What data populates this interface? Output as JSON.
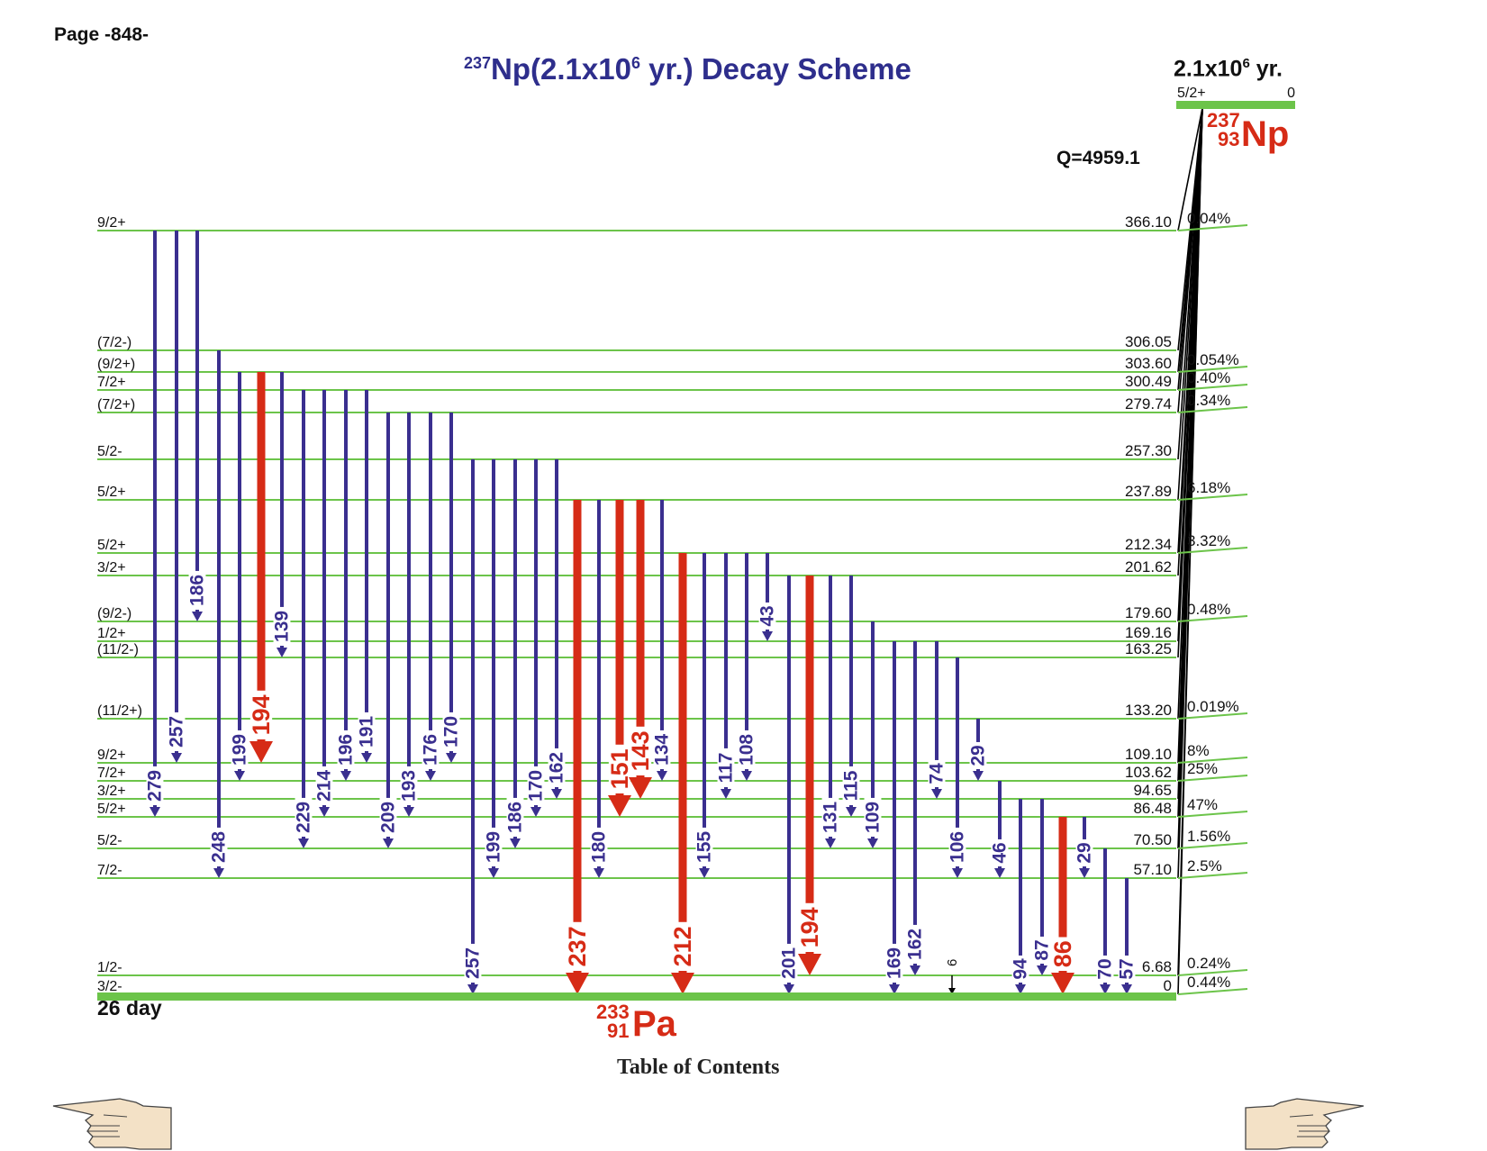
{
  "page_label": "Page -848-",
  "title": {
    "mass": "237",
    "text1": "Np(2.1x10",
    "exp": "6",
    "text2": " yr.) Decay Scheme"
  },
  "parent": {
    "halflife_text": "2.1x10",
    "halflife_exp": "6",
    "halflife_unit": " yr.",
    "spin": "5/2+",
    "energy": "0",
    "mass": "237",
    "z": "93",
    "symbol": "Np",
    "q_value": "Q=4959.1"
  },
  "daughter": {
    "halflife": "26 day",
    "mass": "233",
    "z": "91",
    "symbol": "Pa"
  },
  "footer": {
    "toc": "Table of Contents"
  },
  "colors": {
    "level": "#6cc44a",
    "gamma_weak": "#3a2f8f",
    "gamma_strong": "#d62b16",
    "title": "#2e2e8c",
    "nuclide": "#d62b16"
  },
  "levels": [
    {
      "energy": "366.10",
      "spin": "9/2+",
      "feed": "0.04%",
      "e": 366.1
    },
    {
      "energy": "306.05",
      "spin": "(7/2-)",
      "feed": "",
      "e": 306.05
    },
    {
      "energy": "303.60",
      "spin": "(9/2+)",
      "feed": "0.054%",
      "e": 303.6
    },
    {
      "energy": "300.49",
      "spin": "7/2+",
      "feed": "0.40%",
      "e": 300.49
    },
    {
      "energy": "279.74",
      "spin": "(7/2+)",
      "feed": "0.34%",
      "e": 279.74
    },
    {
      "energy": "257.30",
      "spin": "5/2-",
      "feed": "",
      "e": 257.3
    },
    {
      "energy": "237.89",
      "spin": "5/2+",
      "feed": "6.18%",
      "e": 237.89
    },
    {
      "energy": "212.34",
      "spin": "5/2+",
      "feed": "3.32%",
      "e": 212.34
    },
    {
      "energy": "201.62",
      "spin": "3/2+",
      "feed": "",
      "e": 201.62
    },
    {
      "energy": "179.60",
      "spin": "(9/2-)",
      "feed": "0.48%",
      "e": 179.6
    },
    {
      "energy": "169.16",
      "spin": "1/2+",
      "feed": "",
      "e": 169.16
    },
    {
      "energy": "163.25",
      "spin": "(11/2-)",
      "feed": "",
      "e": 163.25
    },
    {
      "energy": "133.20",
      "spin": "(11/2+)",
      "feed": "0.019%",
      "e": 133.2
    },
    {
      "energy": "109.10",
      "spin": "9/2+",
      "feed": "8%",
      "e": 109.1
    },
    {
      "energy": "103.62",
      "spin": "7/2+",
      "feed": "25%",
      "e": 103.62
    },
    {
      "energy": "94.65",
      "spin": "3/2+",
      "feed": "",
      "e": 94.65
    },
    {
      "energy": "86.48",
      "spin": "5/2+",
      "feed": "47%",
      "e": 86.48
    },
    {
      "energy": "70.50",
      "spin": "5/2-",
      "feed": "1.56%",
      "e": 70.5
    },
    {
      "energy": "57.10",
      "spin": "7/2-",
      "feed": "2.5%",
      "e": 57.1
    },
    {
      "energy": "6.68",
      "spin": "1/2-",
      "feed": "0.24%",
      "e": 6.68
    },
    {
      "energy": "0",
      "spin": "3/2-",
      "feed": "0.44%",
      "e": 0
    }
  ],
  "gammas": [
    {
      "label": "279",
      "from": "366.10",
      "to": "86.48",
      "strong": false
    },
    {
      "label": "257",
      "from": "366.10",
      "to": "109.10",
      "strong": false
    },
    {
      "label": "186",
      "from": "366.10",
      "to": "179.60",
      "strong": false
    },
    {
      "label": "248",
      "from": "306.05",
      "to": "57.10",
      "strong": false
    },
    {
      "label": "199",
      "from": "303.60",
      "to": "103.62",
      "strong": false
    },
    {
      "label": "194",
      "from": "303.60",
      "to": "109.10",
      "strong": true
    },
    {
      "label": "139",
      "from": "303.60",
      "to": "163.25",
      "strong": false
    },
    {
      "label": "229",
      "from": "300.49",
      "to": "70.50",
      "strong": false
    },
    {
      "label": "214",
      "from": "300.49",
      "to": "86.48",
      "strong": false
    },
    {
      "label": "196",
      "from": "300.49",
      "to": "103.62",
      "strong": false
    },
    {
      "label": "191",
      "from": "300.49",
      "to": "109.10",
      "strong": false
    },
    {
      "label": "209",
      "from": "279.74",
      "to": "70.50",
      "strong": false
    },
    {
      "label": "193",
      "from": "279.74",
      "to": "86.48",
      "strong": false
    },
    {
      "label": "176",
      "from": "279.74",
      "to": "103.62",
      "strong": false
    },
    {
      "label": "170",
      "from": "279.74",
      "to": "109.10",
      "strong": false
    },
    {
      "label": "257",
      "from": "257.30",
      "to": "0",
      "strong": false
    },
    {
      "label": "199",
      "from": "257.30",
      "to": "57.10",
      "strong": false
    },
    {
      "label": "186",
      "from": "257.30",
      "to": "70.50",
      "strong": false
    },
    {
      "label": "170",
      "from": "257.30",
      "to": "86.48",
      "strong": false
    },
    {
      "label": "162",
      "from": "257.30",
      "to": "94.65",
      "strong": false
    },
    {
      "label": "237",
      "from": "237.89",
      "to": "0",
      "strong": true
    },
    {
      "label": "180",
      "from": "237.89",
      "to": "57.10",
      "strong": false
    },
    {
      "label": "151",
      "from": "237.89",
      "to": "86.48",
      "strong": true
    },
    {
      "label": "143",
      "from": "237.89",
      "to": "94.65",
      "strong": true
    },
    {
      "label": "134",
      "from": "237.89",
      "to": "103.62",
      "strong": false
    },
    {
      "label": "212",
      "from": "212.34",
      "to": "0",
      "strong": true
    },
    {
      "label": "155",
      "from": "212.34",
      "to": "57.10",
      "strong": false
    },
    {
      "label": "117",
      "from": "212.34",
      "to": "94.65",
      "strong": false
    },
    {
      "label": "108",
      "from": "212.34",
      "to": "103.62",
      "strong": false
    },
    {
      "label": "43",
      "from": "212.34",
      "to": "169.16",
      "strong": false
    },
    {
      "label": "201",
      "from": "201.62",
      "to": "0",
      "strong": false
    },
    {
      "label": "194",
      "from": "201.62",
      "to": "6.68",
      "strong": true
    },
    {
      "label": "131",
      "from": "201.62",
      "to": "70.50",
      "strong": false
    },
    {
      "label": "115",
      "from": "201.62",
      "to": "86.48",
      "strong": false
    },
    {
      "label": "109",
      "from": "179.60",
      "to": "70.50",
      "strong": false
    },
    {
      "label": "169",
      "from": "169.16",
      "to": "0",
      "strong": false
    },
    {
      "label": "162",
      "from": "169.16",
      "to": "6.68",
      "strong": false
    },
    {
      "label": "74",
      "from": "169.16",
      "to": "94.65",
      "strong": false
    },
    {
      "label": "106",
      "from": "163.25",
      "to": "57.10",
      "strong": false
    },
    {
      "label": "29",
      "from": "133.20",
      "to": "103.62",
      "strong": false
    },
    {
      "label": "6",
      "from": "6.68",
      "to": "0",
      "strong": false,
      "small": true
    },
    {
      "label": "46",
      "from": "103.62",
      "to": "57.10",
      "strong": false
    },
    {
      "label": "94",
      "from": "94.65",
      "to": "0",
      "strong": false
    },
    {
      "label": "87",
      "from": "94.65",
      "to": "6.68",
      "strong": false
    },
    {
      "label": "86",
      "from": "86.48",
      "to": "0",
      "strong": true
    },
    {
      "label": "29",
      "from": "86.48",
      "to": "57.10",
      "strong": false
    },
    {
      "label": "70",
      "from": "70.50",
      "to": "0",
      "strong": false
    },
    {
      "label": "57",
      "from": "57.10",
      "to": "0",
      "strong": false
    }
  ]
}
